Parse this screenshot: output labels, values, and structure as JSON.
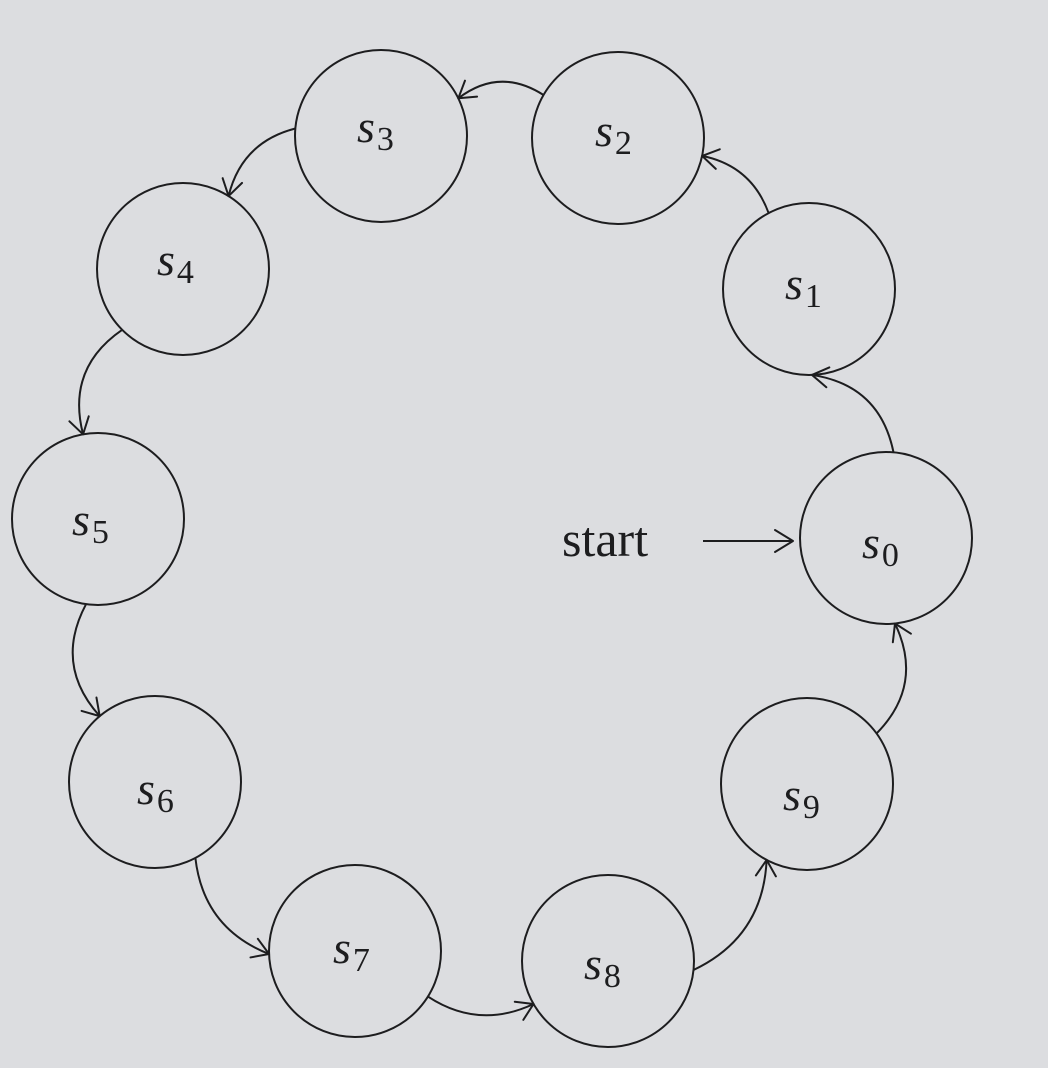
{
  "diagram": {
    "start_label": "start",
    "start_state": "s0",
    "states": [
      {
        "id": "s0",
        "symbol": "s",
        "subscript": "0"
      },
      {
        "id": "s1",
        "symbol": "s",
        "subscript": "1"
      },
      {
        "id": "s2",
        "symbol": "s",
        "subscript": "2"
      },
      {
        "id": "s3",
        "symbol": "s",
        "subscript": "3"
      },
      {
        "id": "s4",
        "symbol": "s",
        "subscript": "4"
      },
      {
        "id": "s5",
        "symbol": "s",
        "subscript": "5"
      },
      {
        "id": "s6",
        "symbol": "s",
        "subscript": "6"
      },
      {
        "id": "s7",
        "symbol": "s",
        "subscript": "7"
      },
      {
        "id": "s8",
        "symbol": "s",
        "subscript": "8"
      },
      {
        "id": "s9",
        "symbol": "s",
        "subscript": "9"
      }
    ],
    "transitions": [
      {
        "from": "s0",
        "to": "s1"
      },
      {
        "from": "s1",
        "to": "s2"
      },
      {
        "from": "s2",
        "to": "s3"
      },
      {
        "from": "s3",
        "to": "s4"
      },
      {
        "from": "s4",
        "to": "s5"
      },
      {
        "from": "s5",
        "to": "s6"
      },
      {
        "from": "s6",
        "to": "s7"
      },
      {
        "from": "s7",
        "to": "s8"
      },
      {
        "from": "s8",
        "to": "s9"
      },
      {
        "from": "s9",
        "to": "s0"
      }
    ]
  }
}
